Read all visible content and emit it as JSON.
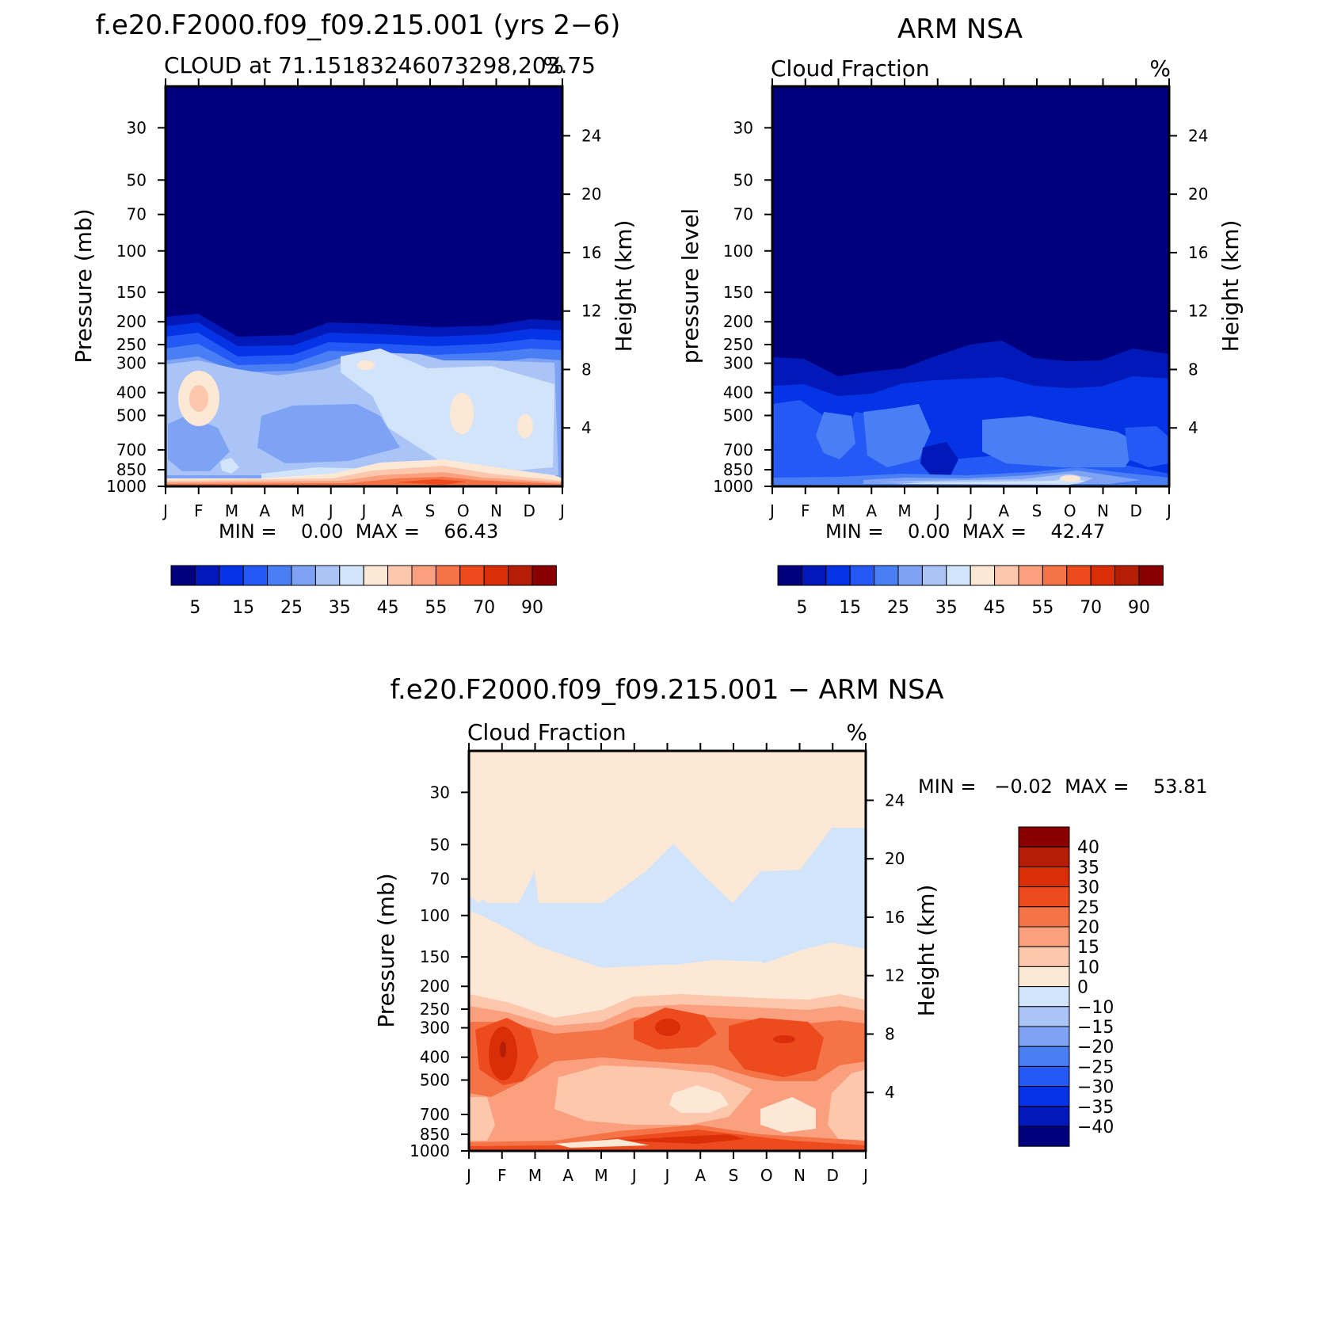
{
  "panels": [
    {
      "id": "model",
      "main_title": "f.e20.F2000.f09_f09.215.001 (yrs 2−6)",
      "left_subtitle": "CLOUD at 71.15183246073298,203.75",
      "right_subtitle": "%",
      "ylabel": "Pressure (mb)",
      "ylabel_right": "Height (km)",
      "minmax_text": "MIN =    0.00  MAX =    66.43",
      "colorbar_orientation": "horizontal"
    },
    {
      "id": "obs",
      "main_title": "ARM NSA",
      "left_subtitle": "Cloud Fraction",
      "right_subtitle": "%",
      "ylabel": "pressure level",
      "ylabel_right": "Height (km)",
      "minmax_text": "MIN =    0.00  MAX =    42.47",
      "colorbar_orientation": "horizontal"
    },
    {
      "id": "diff",
      "main_title": "f.e20.F2000.f09_f09.215.001 − ARM NSA",
      "left_subtitle": "Cloud Fraction",
      "right_subtitle": "%",
      "ylabel": "Pressure (mb)",
      "ylabel_right": "Height (km)",
      "minmax_text": "MIN =   −0.02  MAX =    53.81",
      "colorbar_orientation": "vertical"
    }
  ],
  "chart_data": [
    {
      "type": "heatmap",
      "title": "f.e20.F2000.f09_f09.215.001 (yrs 2−6)",
      "subtitle": "CLOUD at 71.15183246073298,203.75",
      "units": "%",
      "ylabel": "Pressure (mb)",
      "ylabel_right": "Height (km)",
      "x": [
        "J",
        "F",
        "M",
        "A",
        "M",
        "J",
        "J",
        "A",
        "S",
        "O",
        "N",
        "D",
        "J"
      ],
      "y_pressure_ticks": [
        30,
        50,
        70,
        100,
        150,
        200,
        250,
        300,
        400,
        500,
        700,
        850,
        1000
      ],
      "y_height_ticks": [
        24,
        20,
        16,
        12,
        8,
        4
      ],
      "min": 0.0,
      "max": 66.43,
      "colorbar_levels": [
        5,
        10,
        15,
        20,
        25,
        30,
        35,
        40,
        45,
        50,
        55,
        60,
        70,
        80,
        90
      ],
      "colorbar_labels": [
        "5",
        "15",
        "25",
        "35",
        "45",
        "55",
        "70",
        "90"
      ],
      "colors": [
        "#00007f",
        "#0019b8",
        "#0533e6",
        "#2559f5",
        "#4a7ef5",
        "#7ea3f5",
        "#aac4f7",
        "#d2e4fa",
        "#fde8d6",
        "#fcc7ac",
        "#faa07e",
        "#f47448",
        "#ed4b1e",
        "#da2e08",
        "#b51d05",
        "#8a0000"
      ]
    },
    {
      "type": "heatmap",
      "title": "ARM NSA",
      "subtitle": "Cloud Fraction",
      "units": "%",
      "ylabel": "pressure level",
      "ylabel_right": "Height (km)",
      "x": [
        "J",
        "F",
        "M",
        "A",
        "M",
        "J",
        "J",
        "A",
        "S",
        "O",
        "N",
        "D",
        "J"
      ],
      "y_pressure_ticks": [
        30,
        50,
        70,
        100,
        150,
        200,
        250,
        300,
        400,
        500,
        700,
        850,
        1000
      ],
      "y_height_ticks": [
        24,
        20,
        16,
        12,
        8,
        4
      ],
      "min": 0.0,
      "max": 42.47,
      "colorbar_labels": [
        "5",
        "15",
        "25",
        "35",
        "45",
        "55",
        "70",
        "90"
      ]
    },
    {
      "type": "heatmap",
      "title": "f.e20.F2000.f09_f09.215.001 − ARM NSA",
      "subtitle": "Cloud Fraction",
      "units": "%",
      "ylabel": "Pressure (mb)",
      "ylabel_right": "Height (km)",
      "x": [
        "J",
        "F",
        "M",
        "A",
        "M",
        "J",
        "J",
        "A",
        "S",
        "O",
        "N",
        "D",
        "J"
      ],
      "y_pressure_ticks": [
        30,
        50,
        70,
        100,
        150,
        200,
        250,
        300,
        400,
        500,
        700,
        850,
        1000
      ],
      "y_height_ticks": [
        24,
        20,
        16,
        12,
        8,
        4
      ],
      "min": -0.02,
      "max": 53.81,
      "colorbar_labels": [
        "40",
        "35",
        "30",
        "25",
        "20",
        "15",
        "10",
        "0",
        "−10",
        "−15",
        "−20",
        "−25",
        "−30",
        "−35",
        "−40"
      ],
      "colors": [
        "#8a0000",
        "#b51d05",
        "#da2e08",
        "#ed4b1e",
        "#f47448",
        "#faa07e",
        "#fcc7ac",
        "#fde8d6",
        "#d2e4fa",
        "#aac4f7",
        "#7ea3f5",
        "#4a7ef5",
        "#2559f5",
        "#0533e6",
        "#0019b8",
        "#00007f"
      ]
    }
  ]
}
